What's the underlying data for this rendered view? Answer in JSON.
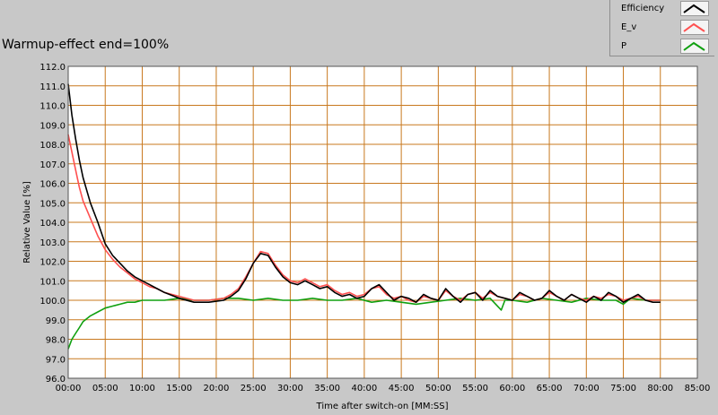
{
  "chart_data": {
    "type": "line",
    "title": "Warmup-effect end=100%",
    "xlabel": "Time after switch-on [MM:SS]",
    "ylabel": "Relative Value [%]",
    "x_unit": "minutes",
    "xlim": [
      0,
      85
    ],
    "ylim": [
      96,
      112
    ],
    "x_tick_labels": [
      "00:00",
      "05:00",
      "10:00",
      "15:00",
      "20:00",
      "25:00",
      "30:00",
      "35:00",
      "40:00",
      "45:00",
      "50:00",
      "55:00",
      "60:00",
      "65:00",
      "70:00",
      "75:00",
      "80:00",
      "85:00"
    ],
    "y_tick_labels": [
      "96.0",
      "97.0",
      "98.0",
      "99.0",
      "100.0",
      "101.0",
      "102.0",
      "103.0",
      "104.0",
      "105.0",
      "106.0",
      "107.0",
      "108.0",
      "109.0",
      "110.0",
      "111.0",
      "112.0"
    ],
    "grid": true,
    "legend_position": "top-right",
    "colors": {
      "background": "#c8c8c8",
      "plot_background": "#ffffff",
      "grid": "#c8781e"
    },
    "series": [
      {
        "name": "Efficiency",
        "color": "#000000",
        "x": [
          0,
          0.5,
          1,
          1.5,
          2,
          3,
          4,
          5,
          6,
          7,
          8,
          9,
          10,
          11,
          12,
          13,
          15,
          17,
          19,
          21,
          22,
          23,
          24,
          25,
          26,
          27,
          28,
          29,
          30,
          31,
          32,
          33,
          34,
          35,
          36,
          37,
          38,
          39,
          40,
          41,
          42,
          43,
          44,
          45,
          46,
          47,
          48,
          49,
          50,
          51,
          52,
          53,
          54,
          55,
          56,
          57,
          58,
          59,
          60,
          61,
          62,
          63,
          64,
          65,
          66,
          67,
          68,
          69,
          70,
          71,
          72,
          73,
          74,
          75,
          76,
          77,
          78,
          79,
          80
        ],
        "y": [
          111.1,
          109.5,
          108.3,
          107.2,
          106.3,
          105.0,
          104.0,
          102.9,
          102.3,
          101.9,
          101.5,
          101.2,
          101.0,
          100.8,
          100.6,
          100.4,
          100.1,
          99.9,
          99.9,
          100.0,
          100.2,
          100.5,
          101.1,
          101.9,
          102.4,
          102.3,
          101.7,
          101.2,
          100.9,
          100.8,
          101.0,
          100.8,
          100.6,
          100.7,
          100.4,
          100.2,
          100.3,
          100.1,
          100.2,
          100.6,
          100.8,
          100.4,
          100.0,
          100.2,
          100.1,
          99.9,
          100.3,
          100.1,
          100.0,
          100.6,
          100.2,
          99.9,
          100.3,
          100.4,
          100.0,
          100.5,
          100.2,
          100.1,
          100.0,
          100.4,
          100.2,
          100.0,
          100.1,
          100.5,
          100.2,
          100.0,
          100.3,
          100.1,
          99.9,
          100.2,
          100.0,
          100.4,
          100.2,
          99.9,
          100.1,
          100.3,
          100.0,
          99.9,
          99.9
        ]
      },
      {
        "name": "E_v",
        "color": "#ff5050",
        "x": [
          0,
          0.5,
          1,
          1.5,
          2,
          3,
          4,
          5,
          6,
          7,
          8,
          9,
          10,
          11,
          12,
          13,
          15,
          17,
          19,
          21,
          22,
          23,
          24,
          25,
          26,
          27,
          28,
          29,
          30,
          31,
          32,
          33,
          34,
          35,
          36,
          37,
          38,
          39,
          40,
          41,
          42,
          43,
          44,
          45,
          46,
          47,
          48,
          49,
          50,
          51,
          52,
          53,
          54,
          55,
          56,
          57,
          58,
          59,
          60,
          61,
          62,
          63,
          64,
          65,
          66,
          67,
          68,
          69,
          70,
          71,
          72,
          73,
          74,
          75,
          76,
          77,
          78,
          79,
          80
        ],
        "y": [
          108.5,
          107.6,
          106.7,
          105.8,
          105.1,
          104.2,
          103.3,
          102.6,
          102.1,
          101.7,
          101.4,
          101.1,
          100.9,
          100.7,
          100.6,
          100.4,
          100.2,
          100.0,
          100.0,
          100.1,
          100.3,
          100.6,
          101.2,
          101.9,
          102.5,
          102.4,
          101.8,
          101.3,
          101.0,
          100.9,
          101.1,
          100.9,
          100.7,
          100.8,
          100.5,
          100.3,
          100.4,
          100.2,
          100.3,
          100.6,
          100.7,
          100.3,
          100.1,
          100.2,
          100.0,
          99.9,
          100.2,
          100.1,
          100.0,
          100.5,
          100.2,
          100.0,
          100.3,
          100.4,
          100.1,
          100.4,
          100.2,
          100.1,
          100.0,
          100.3,
          100.2,
          100.0,
          100.1,
          100.4,
          100.2,
          100.0,
          100.3,
          100.1,
          100.0,
          100.2,
          100.1,
          100.3,
          100.2,
          100.0,
          100.1,
          100.2,
          100.0,
          100.0,
          100.0
        ]
      },
      {
        "name": "P",
        "color": "#10a010",
        "x": [
          0,
          0.5,
          1,
          1.5,
          2,
          3,
          4,
          5,
          6,
          7,
          8,
          9,
          10,
          11,
          12,
          13,
          15,
          17,
          19,
          21,
          23,
          25,
          27,
          29,
          31,
          33,
          35,
          37,
          39,
          41,
          43,
          45,
          47,
          49,
          51,
          53,
          55,
          57,
          58.5,
          59,
          60,
          62,
          64,
          66,
          68,
          70,
          72,
          74,
          75,
          76,
          78,
          80
        ],
        "y": [
          97.5,
          98.0,
          98.3,
          98.6,
          98.9,
          99.2,
          99.4,
          99.6,
          99.7,
          99.8,
          99.9,
          99.9,
          100.0,
          100.0,
          100.0,
          100.0,
          100.1,
          100.0,
          100.0,
          100.1,
          100.1,
          100.0,
          100.1,
          100.0,
          100.0,
          100.1,
          100.0,
          100.0,
          100.1,
          99.9,
          100.0,
          99.9,
          99.8,
          99.9,
          100.0,
          100.1,
          100.0,
          100.1,
          99.5,
          100.0,
          100.0,
          99.9,
          100.1,
          100.0,
          99.9,
          100.1,
          100.0,
          100.0,
          99.8,
          100.1,
          100.0,
          100.0
        ]
      }
    ]
  }
}
